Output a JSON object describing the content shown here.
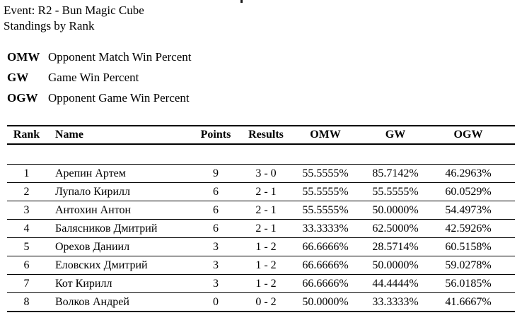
{
  "header": {
    "event_line": "Event: R2 - Bun Magic Cube",
    "standings_line": "Standings by Rank"
  },
  "legend": [
    {
      "abbr": "OMW",
      "description": "Opponent Match Win Percent"
    },
    {
      "abbr": "GW",
      "description": "Game Win Percent"
    },
    {
      "abbr": "OGW",
      "description": "Opponent Game Win Percent"
    }
  ],
  "table": {
    "columns": [
      "Rank",
      "Name",
      "Points",
      "Results",
      "OMW",
      "GW",
      "OGW"
    ],
    "rows": [
      {
        "rank": "1",
        "name": "Арепин Артем",
        "points": "9",
        "results": "3 - 0",
        "omw": "55.5555%",
        "gw": "85.7142%",
        "ogw": "46.2963%"
      },
      {
        "rank": "2",
        "name": "Лупало Кирилл",
        "points": "6",
        "results": "2 - 1",
        "omw": "55.5555%",
        "gw": "55.5555%",
        "ogw": "60.0529%"
      },
      {
        "rank": "3",
        "name": "Антохин Антон",
        "points": "6",
        "results": "2 - 1",
        "omw": "55.5555%",
        "gw": "50.0000%",
        "ogw": "54.4973%"
      },
      {
        "rank": "4",
        "name": "Балясников Дмитрий",
        "points": "6",
        "results": "2 - 1",
        "omw": "33.3333%",
        "gw": "62.5000%",
        "ogw": "42.5926%"
      },
      {
        "rank": "5",
        "name": "Орехов Даниил",
        "points": "3",
        "results": "1 - 2",
        "omw": "66.6666%",
        "gw": "28.5714%",
        "ogw": "60.5158%"
      },
      {
        "rank": "6",
        "name": "Еловских Дмитрий",
        "points": "3",
        "results": "1 - 2",
        "omw": "66.6666%",
        "gw": "50.0000%",
        "ogw": "59.0278%"
      },
      {
        "rank": "7",
        "name": "Кот Кирилл",
        "points": "3",
        "results": "1 - 2",
        "omw": "66.6666%",
        "gw": "44.4444%",
        "ogw": "56.0185%"
      },
      {
        "rank": "8",
        "name": "Волков Андрей",
        "points": "0",
        "results": "0 - 2",
        "omw": "50.0000%",
        "gw": "33.3333%",
        "ogw": "41.6667%"
      }
    ]
  }
}
